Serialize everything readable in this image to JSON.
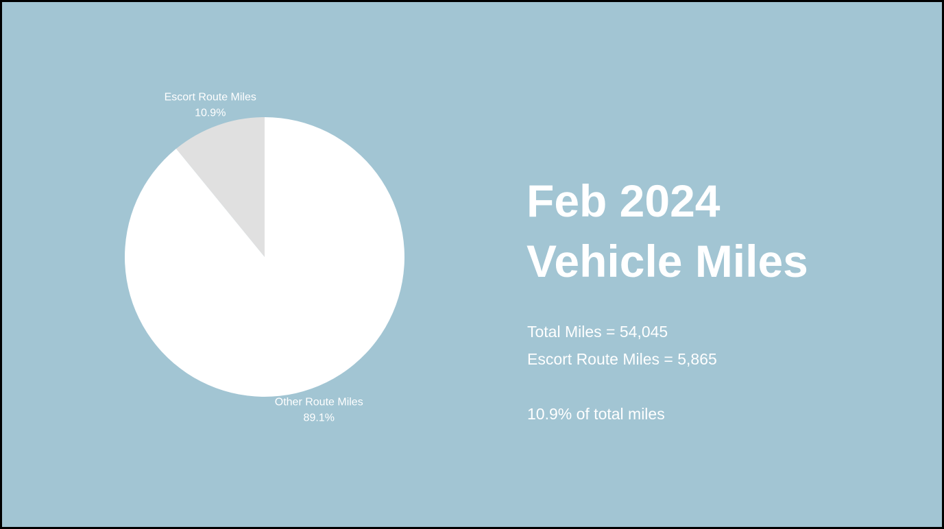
{
  "chart_data": {
    "type": "pie",
    "categories": [
      "Escort Route Miles",
      "Other Route Miles"
    ],
    "values": [
      10.9,
      89.1
    ],
    "value_labels": [
      "10.9%",
      "89.1%"
    ],
    "colors": [
      "#e0e0e0",
      "#ffffff"
    ]
  },
  "slide": {
    "title": [
      "Feb 2024",
      "Vehicle Miles"
    ],
    "body": [
      "Total Miles = 54,045",
      "Escort Route Miles = 5,865",
      "10.9% of total miles"
    ]
  }
}
